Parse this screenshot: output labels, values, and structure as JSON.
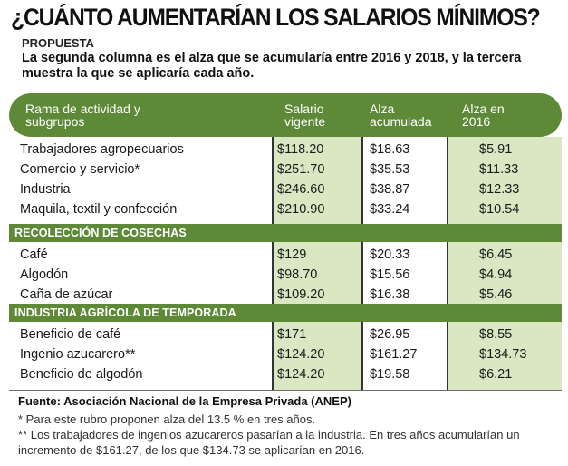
{
  "title": "¿CUÁNTO AUMENTARÍAN LOS SALARIOS MÍNIMOS?",
  "kicker": "PROPUESTA",
  "intro": "La segunda columna es el alza que se acumularía entre 2016 y 2018, y la tercera muestra la que se aplicaría cada año.",
  "colors": {
    "header": "#5e8a37",
    "shade": "#d9e8c2"
  },
  "chart_data": {
    "type": "table",
    "columns": {
      "c0": "Rama de actividad y subgrupos",
      "c1": "Salario vigente",
      "c2": "Alza acumulada",
      "c3": "Alza en 2016"
    },
    "groups": [
      {
        "label": "",
        "rows": [
          {
            "name": "Trabajadores agropecuarios",
            "salario": "$118.20",
            "acumulada": "$18.63",
            "y2016": "$5.91"
          },
          {
            "name": "Comercio y servicio*",
            "salario": "$251.70",
            "acumulada": "$35.53",
            "y2016": "$11.33"
          },
          {
            "name": "Industria",
            "salario": "$246.60",
            "acumulada": "$38.87",
            "y2016": "$12.33"
          },
          {
            "name": "Maquila, textil y confección",
            "salario": "$210.90",
            "acumulada": "$33.24",
            "y2016": "$10.54"
          }
        ]
      },
      {
        "label": "RECOLECCIÓN DE COSECHAS",
        "rows": [
          {
            "name": "Café",
            "salario": "$129",
            "acumulada": "$20.33",
            "y2016": "$6.45"
          },
          {
            "name": "Algodón",
            "salario": "$98.70",
            "acumulada": "$15.56",
            "y2016": "$4.94"
          },
          {
            "name": "Caña de azúcar",
            "salario": "$109.20",
            "acumulada": "$16.38",
            "y2016": "$5.46"
          }
        ]
      },
      {
        "label": "INDUSTRIA AGRÍCOLA DE TEMPORADA",
        "rows": [
          {
            "name": "Beneficio de café",
            "salario": "$171",
            "acumulada": "$26.95",
            "y2016": "$8.55"
          },
          {
            "name": "Ingenio azucarero**",
            "salario": "$124.20",
            "acumulada": "$161.27",
            "y2016": "$134.73"
          },
          {
            "name": "Beneficio de algodón",
            "salario": "$124.20",
            "acumulada": "$19.58",
            "y2016": "$6.21"
          }
        ]
      }
    ]
  },
  "source": "Fuente: Asociación Nacional de la Empresa Privada (ANEP)",
  "notes": {
    "n1": "* Para este rubro proponen alza del 13.5 % en tres años.",
    "n2": "** Los trabajadores de ingenios azucareros pasarían a la industria. En tres años acumularían un incremento de $161.27, de los que $134.73 se aplicarían en 2016."
  }
}
